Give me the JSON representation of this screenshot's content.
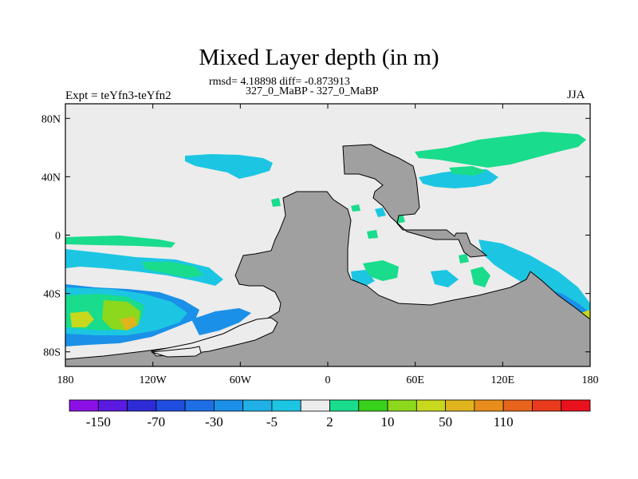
{
  "chart_data": {
    "type": "heatmap",
    "title": "Mixed Layer depth (in m)",
    "stats_text": "rmsd= 4.18898 diff= -0.873913",
    "subtitle": "327_0_MaBP - 327_0_MaBP",
    "left_label": "Expt = teYfn3-teYfn2",
    "right_label": "JJA",
    "x_ticks": [
      "180",
      "120W",
      "60W",
      "0",
      "60E",
      "120E",
      "180"
    ],
    "x_tick_values": [
      -180,
      -120,
      -60,
      0,
      60,
      120,
      180
    ],
    "y_ticks": [
      "80N",
      "40N",
      "0",
      "40S",
      "80S"
    ],
    "y_tick_values": [
      80,
      40,
      0,
      -40,
      -80
    ],
    "xlim": [
      -180,
      180
    ],
    "ylim": [
      -90,
      90
    ],
    "colorbar": {
      "labels": [
        "-150",
        "-70",
        "-30",
        "-5",
        "2",
        "10",
        "50",
        "110"
      ],
      "colors": [
        "#8c10e6",
        "#5a1ae0",
        "#2d2bd6",
        "#1f4de0",
        "#1e6fe6",
        "#1a90e8",
        "#1fb0e8",
        "#1cc6e2",
        "#ececec",
        "#19dc8c",
        "#38d21a",
        "#8cd81c",
        "#c8d81c",
        "#e0b41c",
        "#e88c1c",
        "#e8641c",
        "#e83a1c",
        "#e8121c"
      ]
    }
  },
  "colors": {
    "ocean_background": "#ececec",
    "land": "#a0a0a0",
    "green": "#19dc8c",
    "cyan": "#1cc6e2",
    "light_blue": "#1fb0e8",
    "mid_blue": "#1a90e8"
  }
}
